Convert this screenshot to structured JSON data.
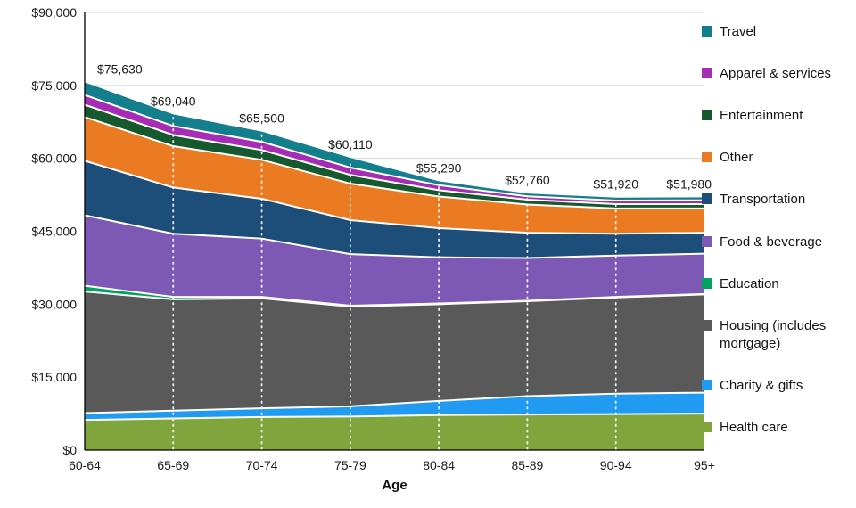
{
  "chart_data": {
    "type": "area",
    "stacked": true,
    "title": "",
    "xlabel": "Age",
    "ylabel": "",
    "ylim": [
      0,
      90000
    ],
    "grid": "horizontal",
    "legend_position": "right",
    "categories": [
      "60-64",
      "65-69",
      "70-74",
      "75-79",
      "80-84",
      "85-89",
      "90-94",
      "95+"
    ],
    "y_ticks": [
      {
        "value": 0,
        "label": "$0"
      },
      {
        "value": 15000,
        "label": "$15,000"
      },
      {
        "value": 30000,
        "label": "$30,000"
      },
      {
        "value": 45000,
        "label": "$45,000"
      },
      {
        "value": 60000,
        "label": "$60,000"
      },
      {
        "value": 75000,
        "label": "$75,000"
      },
      {
        "value": 90000,
        "label": "$90,000"
      }
    ],
    "series": [
      {
        "name": "Health care",
        "color": "#7fa53c",
        "values": [
          6200,
          6500,
          6800,
          6900,
          7200,
          7300,
          7400,
          7500
        ]
      },
      {
        "name": "Charity & gifts",
        "color": "#219af2",
        "values": [
          1400,
          1600,
          1800,
          2100,
          2900,
          3800,
          4200,
          4300
        ]
      },
      {
        "name": "Housing (includes mortgage)",
        "color": "#595959",
        "values": [
          25000,
          22900,
          22600,
          20500,
          19900,
          19500,
          19800,
          20200
        ]
      },
      {
        "name": "Education",
        "color": "#00a360",
        "values": [
          1200,
          500,
          300,
          200,
          150,
          100,
          100,
          100
        ]
      },
      {
        "name": "Food & beverage",
        "color": "#7d58b5",
        "values": [
          14500,
          13000,
          12000,
          10600,
          9500,
          8800,
          8500,
          8300
        ]
      },
      {
        "name": "Transportation",
        "color": "#1d4e79",
        "values": [
          11200,
          9500,
          8200,
          7000,
          6000,
          5200,
          4500,
          4300
        ]
      },
      {
        "name": "Other",
        "color": "#ea7b22",
        "values": [
          9000,
          8500,
          8000,
          7500,
          6500,
          5800,
          5200,
          5000
        ]
      },
      {
        "name": "Entertainment",
        "color": "#17592f",
        "values": [
          2530,
          2300,
          2000,
          1800,
          1300,
          1000,
          900,
          900
        ]
      },
      {
        "name": "Apparel & services",
        "color": "#a62bb5",
        "values": [
          2000,
          1840,
          1700,
          1500,
          1040,
          700,
          720,
          780
        ]
      },
      {
        "name": "Travel",
        "color": "#137f8c",
        "values": [
          2600,
          2400,
          2100,
          2010,
          800,
          560,
          600,
          600
        ]
      }
    ],
    "totals": [
      "$75,630",
      "$69,040",
      "$65,500",
      "$60,110",
      "$55,290",
      "$52,760",
      "$51,920",
      "$51,980"
    ],
    "total_values": [
      75630,
      69040,
      65500,
      60110,
      55290,
      52760,
      51920,
      51980
    ]
  }
}
